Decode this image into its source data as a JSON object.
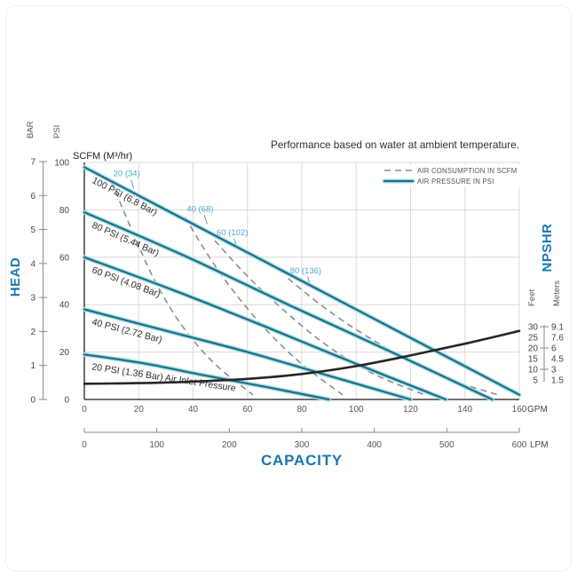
{
  "title": "Performance based on water at ambient temperature.",
  "annotations": {
    "scfm_header": "SCFM (M³/hr)"
  },
  "legend": {
    "air_consumption_label": "AIR CONSUMPTION IN SCFM",
    "air_pressure_label": "AIR PRESSURE IN PSI"
  },
  "axes": {
    "left": {
      "title": "HEAD",
      "bar_label": "BAR",
      "psi_label": "PSI",
      "bar_ticks": [
        7,
        6,
        5,
        4,
        3,
        2,
        1,
        0
      ],
      "psi_ticks": [
        100,
        80,
        60,
        40,
        20,
        0
      ]
    },
    "bottom": {
      "title": "CAPACITY",
      "gpm_unit": "GPM",
      "lpm_unit": "LPM",
      "gpm_ticks": [
        0,
        20,
        40,
        60,
        80,
        100,
        120,
        140,
        160
      ],
      "lpm_ticks": [
        0,
        100,
        200,
        300,
        400,
        500,
        600
      ]
    },
    "right": {
      "title": "NPSHR",
      "feet_label": "Feet",
      "meters_label": "Meters",
      "rows": [
        {
          "feet": "30",
          "meters": "9.1"
        },
        {
          "feet": "25",
          "meters": "7.6"
        },
        {
          "feet": "20",
          "meters": "6"
        },
        {
          "feet": "15",
          "meters": "4.5"
        },
        {
          "feet": "10",
          "meters": "3"
        },
        {
          "feet": "5",
          "meters": "1.5"
        }
      ]
    }
  },
  "colors": {
    "accent_blue": "#1878b4",
    "curve_core": "#1b6f84",
    "curve_halo": "#aadce8",
    "dashed_gray": "#8d8d8d",
    "npshr_black": "#262626",
    "scfm_label_blue": "#4fa8c9",
    "grid": "#d9d9d9"
  },
  "chart_data": {
    "type": "line",
    "title": "Performance based on water at ambient temperature.",
    "xlabel": "CAPACITY",
    "x_units": [
      "GPM",
      "LPM"
    ],
    "gpm_range": [
      0,
      160
    ],
    "lpm_range": [
      0,
      600
    ],
    "ylabel_left": "HEAD",
    "left_units": [
      "BAR",
      "PSI"
    ],
    "bar_range": [
      0,
      7
    ],
    "psi_range": [
      0,
      100
    ],
    "ylabel_right": "NPSHR",
    "right_units": [
      "Feet",
      "Meters"
    ],
    "npshr_feet_ticks": [
      30,
      25,
      20,
      15,
      10,
      5
    ],
    "npshr_meters_ticks": [
      "9.1",
      "7.6",
      "6",
      "4.5",
      "3",
      "1.5"
    ],
    "grid": true,
    "legend_position": "top-right",
    "air_pressure_curves": [
      {
        "label": "100 PSI (6.8 Bar)",
        "points_gpm_psi": [
          [
            0,
            98
          ],
          [
            40,
            74
          ],
          [
            80,
            50
          ],
          [
            120,
            26
          ],
          [
            160,
            2
          ]
        ]
      },
      {
        "label": "80 PSI (5.44 Bar)",
        "points_gpm_psi": [
          [
            0,
            79
          ],
          [
            38,
            60
          ],
          [
            75,
            40
          ],
          [
            113,
            20
          ],
          [
            150,
            0
          ]
        ]
      },
      {
        "label": "60 PSI (4.08 Bar)",
        "points_gpm_psi": [
          [
            0,
            60
          ],
          [
            33,
            46
          ],
          [
            66,
            31
          ],
          [
            100,
            15
          ],
          [
            133,
            0
          ]
        ]
      },
      {
        "label": "40 PSI (2.72 Bar)",
        "points_gpm_psi": [
          [
            0,
            38
          ],
          [
            30,
            29
          ],
          [
            60,
            20
          ],
          [
            90,
            10
          ],
          [
            120,
            0
          ]
        ]
      },
      {
        "label": "20 PSI (1.36 Bar) Air Inlet Pressure",
        "points_gpm_psi": [
          [
            0,
            19
          ],
          [
            23,
            15
          ],
          [
            45,
            10
          ],
          [
            68,
            5
          ],
          [
            90,
            0
          ]
        ]
      }
    ],
    "air_consumption_curves": [
      {
        "label": "20 (34)",
        "points_gpm_psi": [
          [
            10,
            92
          ],
          [
            18,
            70
          ],
          [
            26,
            50
          ],
          [
            36,
            31
          ],
          [
            48,
            15
          ],
          [
            62,
            2
          ]
        ]
      },
      {
        "label": "40 (68)",
        "points_gpm_psi": [
          [
            37,
            77
          ],
          [
            46,
            60
          ],
          [
            56,
            44
          ],
          [
            68,
            28
          ],
          [
            81,
            14
          ],
          [
            95,
            2
          ]
        ]
      },
      {
        "label": "60 (102)",
        "points_gpm_psi": [
          [
            48,
            67
          ],
          [
            60,
            52
          ],
          [
            74,
            37
          ],
          [
            89,
            23
          ],
          [
            106,
            11
          ],
          [
            125,
            2
          ]
        ]
      },
      {
        "label": "80 (136)",
        "points_gpm_psi": [
          [
            75,
            51
          ],
          [
            88,
            39
          ],
          [
            102,
            28
          ],
          [
            117,
            18
          ],
          [
            133,
            9
          ],
          [
            152,
            2
          ]
        ]
      }
    ],
    "npshr_curve": {
      "unit": "Feet",
      "points_gpm_feet": [
        [
          0,
          3.2
        ],
        [
          20,
          3.5
        ],
        [
          40,
          4.2
        ],
        [
          60,
          5.5
        ],
        [
          80,
          7.8
        ],
        [
          100,
          11.5
        ],
        [
          120,
          16.5
        ],
        [
          140,
          22
        ],
        [
          160,
          28
        ]
      ]
    }
  }
}
